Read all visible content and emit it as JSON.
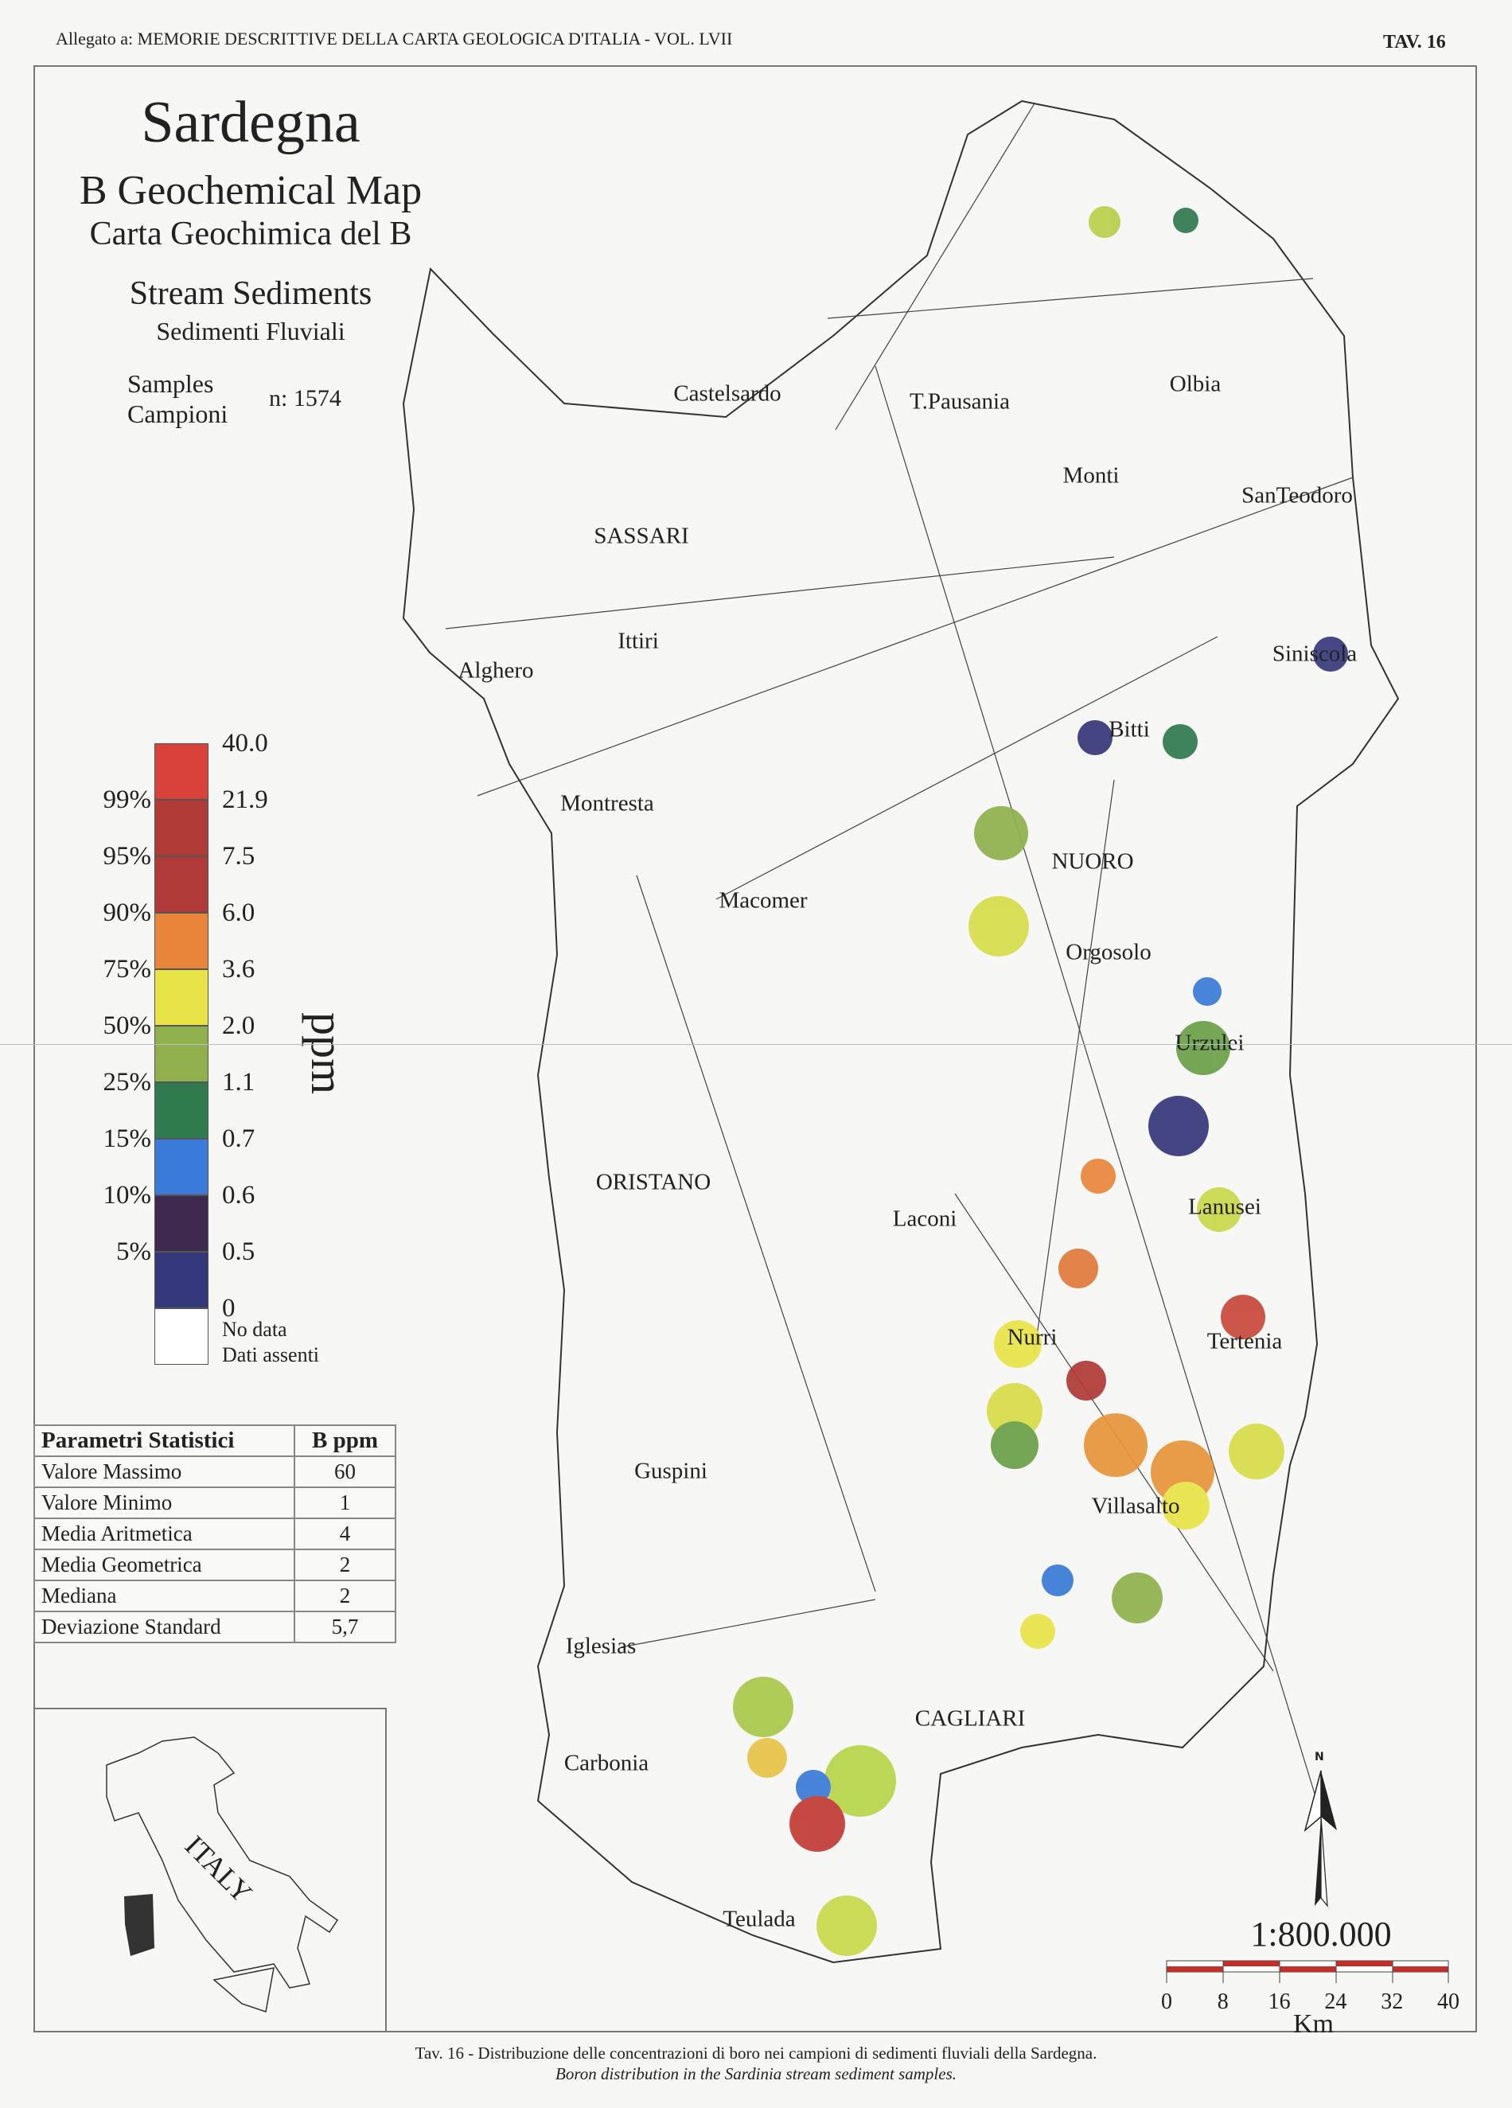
{
  "header": {
    "left": "Allegato a: MEMORIE DESCRITTIVE DELLA CARTA GEOLOGICA D'ITALIA - VOL. LVII",
    "right": "TAV. 16"
  },
  "title": {
    "region": "Sardegna",
    "map_en": "B Geochemical Map",
    "map_it": "Carta Geochimica del B",
    "media_en": "Stream Sediments",
    "media_it": "Sedimenti Fluviali",
    "samples_en": "Samples",
    "samples_it": "Campioni",
    "samples_n": "n: 1574"
  },
  "legend": {
    "unit": "ppm",
    "bands": [
      {
        "color": "#d8423a",
        "top": "40.0",
        "pct": ""
      },
      {
        "color": "#b03a36",
        "top": "21.9",
        "pct": "99%"
      },
      {
        "color": "#b0393a",
        "top": "7.5",
        "pct": "95%"
      },
      {
        "color": "#e8853a",
        "top": "6.0",
        "pct": "90%"
      },
      {
        "color": "#e8e448",
        "top": "3.6",
        "pct": "75%"
      },
      {
        "color": "#8fb04c",
        "top": "2.0",
        "pct": "50%"
      },
      {
        "color": "#2f7a4e",
        "top": "1.1",
        "pct": "25%"
      },
      {
        "color": "#3a7ad8",
        "top": "0.7",
        "pct": "15%"
      },
      {
        "color": "#3e2a4e",
        "top": "0.6",
        "pct": "10%"
      },
      {
        "color": "#35387a",
        "top": "0.5",
        "pct": "5%"
      }
    ],
    "bottom_value": "0",
    "nodata_en": "No data",
    "nodata_it": "Dati assenti"
  },
  "stats": {
    "header": [
      "Parametri Statistici",
      "B   ppm"
    ],
    "rows": [
      [
        "Valore Massimo",
        "60"
      ],
      [
        "Valore Minimo",
        "1"
      ],
      [
        "Media Aritmetica",
        "4"
      ],
      [
        "Media Geometrica",
        "2"
      ],
      [
        "Mediana",
        "2"
      ],
      [
        "Deviazione Standard",
        "5,7"
      ]
    ]
  },
  "inset": {
    "label": "ITALY"
  },
  "cities": [
    "Castelsardo",
    "T.Pausania",
    "Olbia",
    "Monti",
    "SanTeodoro",
    "SASSARI",
    "Ittiri",
    "Alghero",
    "Siniscola",
    "Bitti",
    "Montresta",
    "NUORO",
    "Macomer",
    "Orgosolo",
    "Urzulei",
    "ORISTANO",
    "Laconi",
    "Lanusei",
    "Nurri",
    "Tertenia",
    "Guspini",
    "Villasalto",
    "Iglesias",
    "CAGLIARI",
    "Carbonia",
    "Teulada"
  ],
  "north": "N",
  "scale": {
    "ratio": "1:800.000",
    "ticks": [
      "0",
      "8",
      "16",
      "24",
      "32",
      "40"
    ],
    "unit": "Km"
  },
  "caption": {
    "it": "Tav. 16 - Distribuzione delle concentrazioni di boro nei campioni di sedimenti fluviali della Sardegna.",
    "en": "Boron distribution in the Sardinia stream sediment samples."
  }
}
